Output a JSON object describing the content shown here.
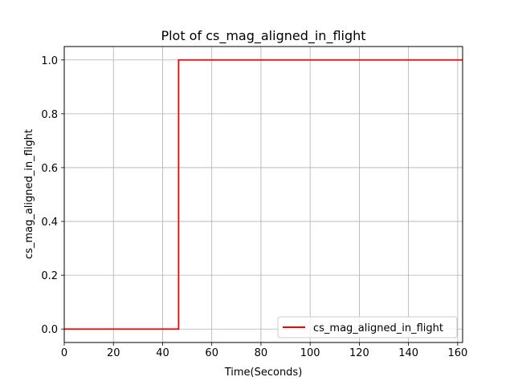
{
  "chart_data": {
    "type": "line",
    "title": "Plot of cs_mag_aligned_in_flight",
    "xlabel": "Time(Seconds)",
    "ylabel": "cs_mag_aligned_in_flight",
    "xlim": [
      0,
      162
    ],
    "ylim": [
      -0.05,
      1.05
    ],
    "xticks": [
      0,
      20,
      40,
      60,
      80,
      100,
      120,
      140,
      160
    ],
    "yticks": [
      0.0,
      0.2,
      0.4,
      0.6,
      0.8,
      1.0
    ],
    "xtick_labels": [
      "0",
      "20",
      "40",
      "60",
      "80",
      "100",
      "120",
      "140",
      "160"
    ],
    "ytick_labels": [
      "0.0",
      "0.2",
      "0.4",
      "0.6",
      "0.8",
      "1.0"
    ],
    "grid": true,
    "legend_position": "lower-right",
    "series": [
      {
        "name": "cs_mag_aligned_in_flight",
        "color": "#ff0000",
        "x": [
          0,
          46.5,
          46.5,
          162
        ],
        "y": [
          0,
          0,
          1,
          1
        ]
      }
    ]
  }
}
